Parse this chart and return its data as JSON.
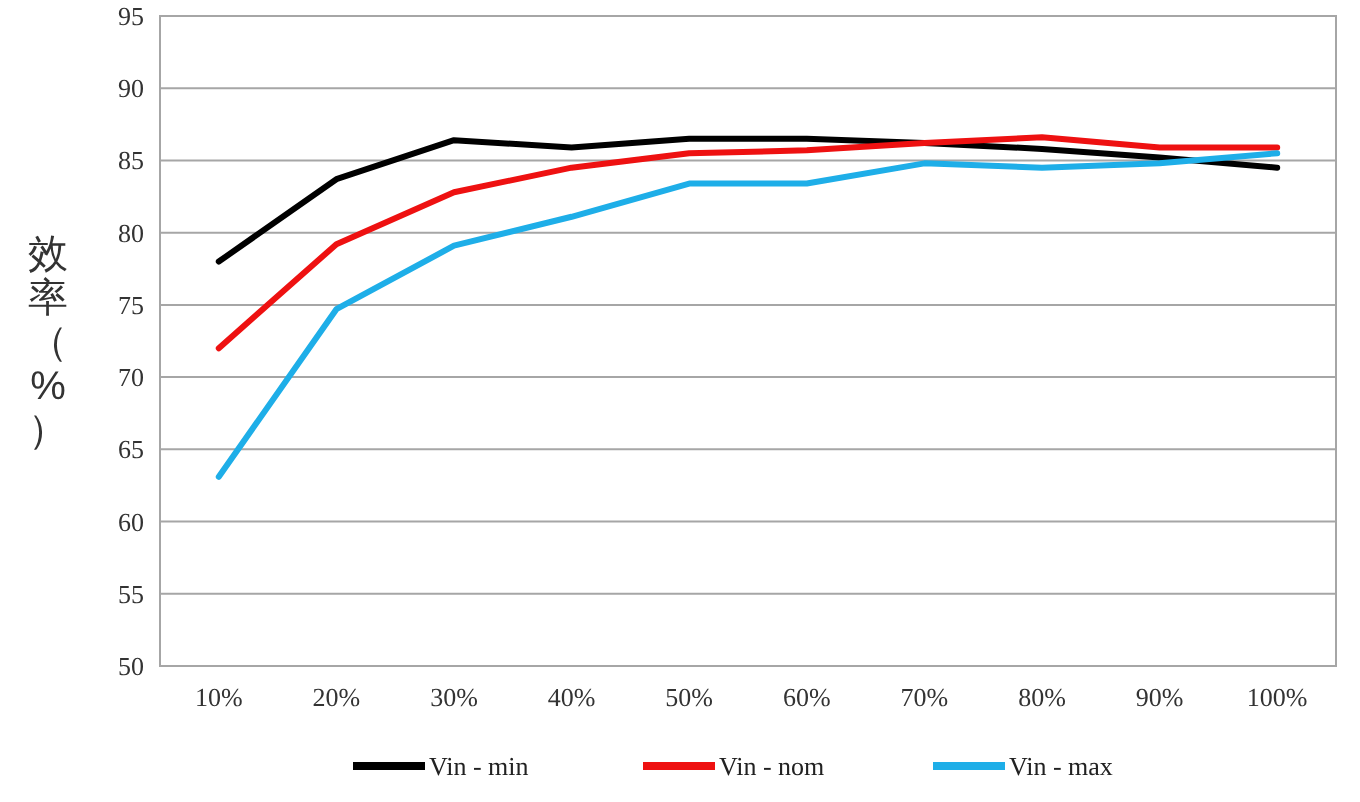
{
  "chart_data": {
    "type": "line",
    "ylabel": "效率（%）",
    "categories": [
      "10%",
      "20%",
      "30%",
      "40%",
      "50%",
      "60%",
      "70%",
      "80%",
      "90%",
      "100%"
    ],
    "series": [
      {
        "name": "Vin - min",
        "color": "#000000",
        "values": [
          78,
          83.7,
          86.4,
          85.9,
          86.5,
          86.5,
          86.2,
          85.8,
          85.2,
          84.5
        ]
      },
      {
        "name": "Vin - nom",
        "color": "#ee1111",
        "values": [
          72,
          79.2,
          82.8,
          84.5,
          85.5,
          85.7,
          86.2,
          86.6,
          85.9,
          85.9
        ]
      },
      {
        "name": "Vin - max",
        "color": "#1eaee8",
        "values": [
          63.1,
          74.7,
          79.1,
          81.1,
          83.4,
          83.4,
          84.8,
          84.5,
          84.8,
          85.5
        ]
      }
    ],
    "ylim": [
      50,
      95
    ],
    "yticks": [
      50,
      55,
      60,
      65,
      70,
      75,
      80,
      85,
      90,
      95
    ],
    "grid": "y",
    "legend": "bottom",
    "marker": "none",
    "line_style": "solid"
  }
}
